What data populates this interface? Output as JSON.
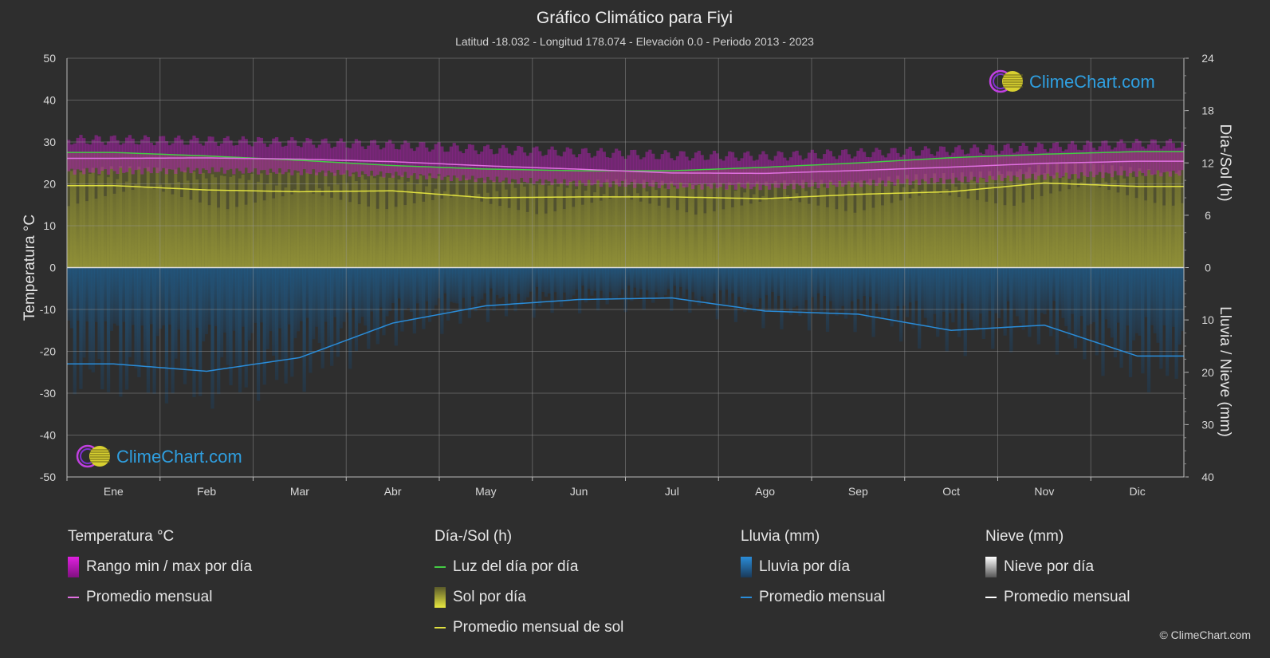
{
  "chart_data": {
    "type": "area",
    "title": "Gráfico Climático para Fiyi",
    "subtitle": "Latitud -18.032 - Longitud 178.074 - Elevación 0.0 - Periodo 2013 - 2023",
    "months": [
      "Ene",
      "Feb",
      "Mar",
      "Abr",
      "May",
      "Jun",
      "Jul",
      "Ago",
      "Sep",
      "Oct",
      "Nov",
      "Dic"
    ],
    "y_left": {
      "label": "Temperatura °C",
      "range": [
        -50,
        50
      ],
      "ticks": [
        "50",
        "40",
        "30",
        "20",
        "10",
        "0",
        "-10",
        "-20",
        "-30",
        "-40",
        "-50"
      ]
    },
    "y_right_top": {
      "label": "Día-/Sol (h)",
      "range": [
        0,
        24
      ],
      "ticks": [
        "24",
        "18",
        "12",
        "6",
        "0"
      ]
    },
    "y_right_bottom": {
      "label": "Lluvia / Nieve (mm)",
      "range": [
        0,
        40
      ],
      "ticks": [
        "0",
        "10",
        "20",
        "30",
        "40"
      ]
    },
    "series": [
      {
        "name": "Luz del día por día",
        "unit": "h",
        "color": "#44cc44",
        "values": [
          13.2,
          12.8,
          12.3,
          11.7,
          11.3,
          11.1,
          11.1,
          11.5,
          12.0,
          12.6,
          13.0,
          13.3
        ]
      },
      {
        "name": "Promedio mensual",
        "group": "Temperatura °C",
        "unit": "°C",
        "color": "#e070e0",
        "values": [
          26.1,
          26.2,
          25.9,
          25.3,
          24.3,
          23.5,
          22.6,
          22.5,
          23.2,
          24.0,
          24.9,
          25.4
        ]
      },
      {
        "name": "Promedio mensual de sol",
        "unit": "h",
        "color": "#e0e040",
        "values": [
          9.4,
          8.9,
          8.7,
          8.8,
          8.0,
          8.1,
          8.1,
          7.9,
          8.4,
          8.7,
          9.7,
          9.3
        ]
      },
      {
        "name": "Promedio mensual",
        "group": "Lluvia (mm)",
        "unit": "mm",
        "color": "#2a8cd8",
        "values": [
          18.4,
          19.8,
          17.2,
          10.6,
          7.3,
          6.1,
          5.8,
          8.3,
          8.9,
          12.0,
          11.0,
          16.9
        ]
      }
    ],
    "temp_range_band": {
      "name": "Rango min / max por día",
      "max": [
        30.5,
        30.3,
        29.9,
        29.3,
        28.2,
        27.5,
        26.8,
        26.6,
        27.3,
        28.0,
        28.8,
        29.6
      ],
      "min": [
        23.0,
        23.2,
        22.8,
        22.2,
        21.0,
        20.2,
        19.5,
        19.3,
        20.0,
        20.8,
        21.8,
        22.5
      ]
    }
  },
  "brand": {
    "text": "ClimeChart.com",
    "copyright": "© ClimeChart.com"
  },
  "legend": {
    "temperature": {
      "title": "Temperatura °C",
      "range_label": "Rango min / max por día",
      "avg_label": "Promedio mensual"
    },
    "sun": {
      "title": "Día-/Sol (h)",
      "daylight_label": "Luz del día por día",
      "sun_label": "Sol por día",
      "sun_avg_label": "Promedio mensual de sol"
    },
    "rain": {
      "title": "Lluvia (mm)",
      "rain_label": "Lluvia por día",
      "avg_label": "Promedio mensual"
    },
    "snow": {
      "title": "Nieve (mm)",
      "snow_label": "Nieve por día",
      "avg_label": "Promedio mensual"
    }
  },
  "colors": {
    "background": "#2e2e2e",
    "daylight": "#44cc44",
    "temp_avg": "#e070e0",
    "temp_band": "#c020c0",
    "sun": "#a0a030",
    "sun_avg": "#e0e040",
    "rain": "#2a8cd8",
    "rain_fill": "#1c5a8a",
    "snow": "#ffffff",
    "brand_text": "#2f9fe0"
  }
}
